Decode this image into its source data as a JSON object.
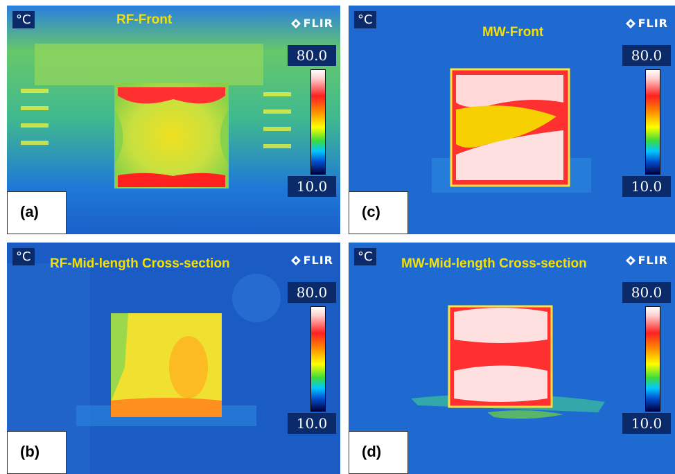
{
  "panels": [
    {
      "id": "a",
      "label": "(a)",
      "title": "RF-Front",
      "unit": "°C",
      "brand": "FLIR",
      "scale_max": "80.0",
      "scale_min": "10.0"
    },
    {
      "id": "c",
      "label": "(c)",
      "title": "MW-Front",
      "unit": "°C",
      "brand": "FLIR",
      "scale_max": "80.0",
      "scale_min": "10.0"
    },
    {
      "id": "b",
      "label": "(b)",
      "title": "RF-Mid-length Cross-section",
      "unit": "°C",
      "brand": "FLIR",
      "scale_max": "80.0",
      "scale_min": "10.0"
    },
    {
      "id": "d",
      "label": "(d)",
      "title": "MW-Mid-length Cross-section",
      "unit": "°C",
      "brand": "FLIR",
      "scale_max": "80.0",
      "scale_min": "10.0"
    }
  ],
  "colors": {
    "background": "#1e66c8",
    "title": "#f5e000",
    "hot": "#ff2020",
    "warm": "#ffd000",
    "cool": "#3cdc3c"
  }
}
